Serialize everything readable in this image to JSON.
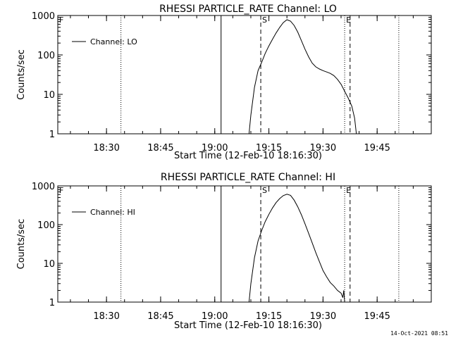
{
  "footer": {
    "timestamp": "14-Oct-2021 08:51"
  },
  "chart_data": [
    {
      "type": "line",
      "title": "RHESSI PARTICLE_RATE Channel: LO",
      "xlabel": "Start Time (12-Feb-10 18:16:30)",
      "ylabel": "Counts/sec",
      "xlim": [
        "18:16:30",
        "20:00:00"
      ],
      "ylim": [
        1,
        1000
      ],
      "y_scale": "log",
      "x_ticks": [
        "18:30",
        "18:45",
        "19:00",
        "19:15",
        "19:30",
        "19:45"
      ],
      "y_ticks": [
        "1",
        "10",
        "100",
        "1000"
      ],
      "legend": {
        "position": "top-left",
        "entries": [
          "Channel: LO"
        ]
      },
      "markers": [
        {
          "label": "F",
          "time": "18:16:30",
          "style": "dotted"
        },
        {
          "label": "",
          "time": "18:34:00",
          "style": "dotted"
        },
        {
          "label": "",
          "time": "19:01:45",
          "style": "solid"
        },
        {
          "label": "S",
          "time": "19:12:45",
          "style": "dashed"
        },
        {
          "label": "E",
          "time": "19:36:00",
          "style": "dotted"
        },
        {
          "label": "",
          "time": "19:37:30",
          "style": "dashed"
        },
        {
          "label": "",
          "time": "19:51:00",
          "style": "dotted"
        }
      ],
      "series": [
        {
          "name": "Channel: LO",
          "points": [
            [
              "19:09:30",
              1
            ],
            [
              "19:10:00",
              3
            ],
            [
              "19:11:00",
              15
            ],
            [
              "19:12:00",
              40
            ],
            [
              "19:13:00",
              65
            ],
            [
              "19:14:00",
              110
            ],
            [
              "19:15:00",
              170
            ],
            [
              "19:16:00",
              250
            ],
            [
              "19:17:00",
              360
            ],
            [
              "19:18:00",
              500
            ],
            [
              "19:19:00",
              660
            ],
            [
              "19:20:00",
              780
            ],
            [
              "19:21:00",
              720
            ],
            [
              "19:22:00",
              560
            ],
            [
              "19:23:00",
              380
            ],
            [
              "19:24:00",
              230
            ],
            [
              "19:25:00",
              140
            ],
            [
              "19:26:00",
              90
            ],
            [
              "19:27:00",
              62
            ],
            [
              "19:28:00",
              50
            ],
            [
              "19:29:00",
              44
            ],
            [
              "19:30:00",
              40
            ],
            [
              "19:31:00",
              37
            ],
            [
              "19:32:00",
              34
            ],
            [
              "19:33:00",
              30
            ],
            [
              "19:34:00",
              24
            ],
            [
              "19:35:00",
              18
            ],
            [
              "19:36:00",
              12
            ],
            [
              "19:37:00",
              8
            ],
            [
              "19:38:00",
              5
            ],
            [
              "19:38:45",
              2.5
            ],
            [
              "19:39:15",
              1
            ]
          ]
        }
      ]
    },
    {
      "type": "line",
      "title": "RHESSI PARTICLE_RATE Channel: HI",
      "xlabel": "Start Time (12-Feb-10 18:16:30)",
      "ylabel": "Counts/sec",
      "xlim": [
        "18:16:30",
        "20:00:00"
      ],
      "ylim": [
        1,
        1000
      ],
      "y_scale": "log",
      "x_ticks": [
        "18:30",
        "18:45",
        "19:00",
        "19:15",
        "19:30",
        "19:45"
      ],
      "y_ticks": [
        "1",
        "10",
        "100",
        "1000"
      ],
      "legend": {
        "position": "top-left",
        "entries": [
          "Channel: HI"
        ]
      },
      "markers": [
        {
          "label": "F",
          "time": "18:16:30",
          "style": "dotted"
        },
        {
          "label": "",
          "time": "18:34:00",
          "style": "dotted"
        },
        {
          "label": "",
          "time": "19:01:45",
          "style": "solid"
        },
        {
          "label": "S",
          "time": "19:12:45",
          "style": "dashed"
        },
        {
          "label": "E",
          "time": "19:36:00",
          "style": "dotted"
        },
        {
          "label": "",
          "time": "19:37:30",
          "style": "dashed"
        },
        {
          "label": "",
          "time": "19:51:00",
          "style": "dotted"
        }
      ],
      "series": [
        {
          "name": "Channel: HI",
          "points": [
            [
              "19:09:30",
              1
            ],
            [
              "19:10:00",
              3
            ],
            [
              "19:11:00",
              14
            ],
            [
              "19:12:00",
              38
            ],
            [
              "19:13:00",
              70
            ],
            [
              "19:14:00",
              120
            ],
            [
              "19:15:00",
              185
            ],
            [
              "19:16:00",
              270
            ],
            [
              "19:17:00",
              370
            ],
            [
              "19:18:00",
              470
            ],
            [
              "19:19:00",
              560
            ],
            [
              "19:20:00",
              610
            ],
            [
              "19:21:00",
              570
            ],
            [
              "19:22:00",
              430
            ],
            [
              "19:23:00",
              290
            ],
            [
              "19:24:00",
              180
            ],
            [
              "19:25:00",
              105
            ],
            [
              "19:26:00",
              60
            ],
            [
              "19:27:00",
              34
            ],
            [
              "19:28:00",
              19
            ],
            [
              "19:29:00",
              11
            ],
            [
              "19:30:00",
              6.5
            ],
            [
              "19:31:00",
              4.5
            ],
            [
              "19:32:00",
              3.2
            ],
            [
              "19:33:00",
              2.6
            ],
            [
              "19:34:00",
              2.0
            ],
            [
              "19:35:00",
              1.7
            ],
            [
              "19:35:30",
              1.3
            ],
            [
              "19:35:45",
              2.0
            ],
            [
              "19:36:00",
              1
            ]
          ]
        }
      ]
    }
  ]
}
